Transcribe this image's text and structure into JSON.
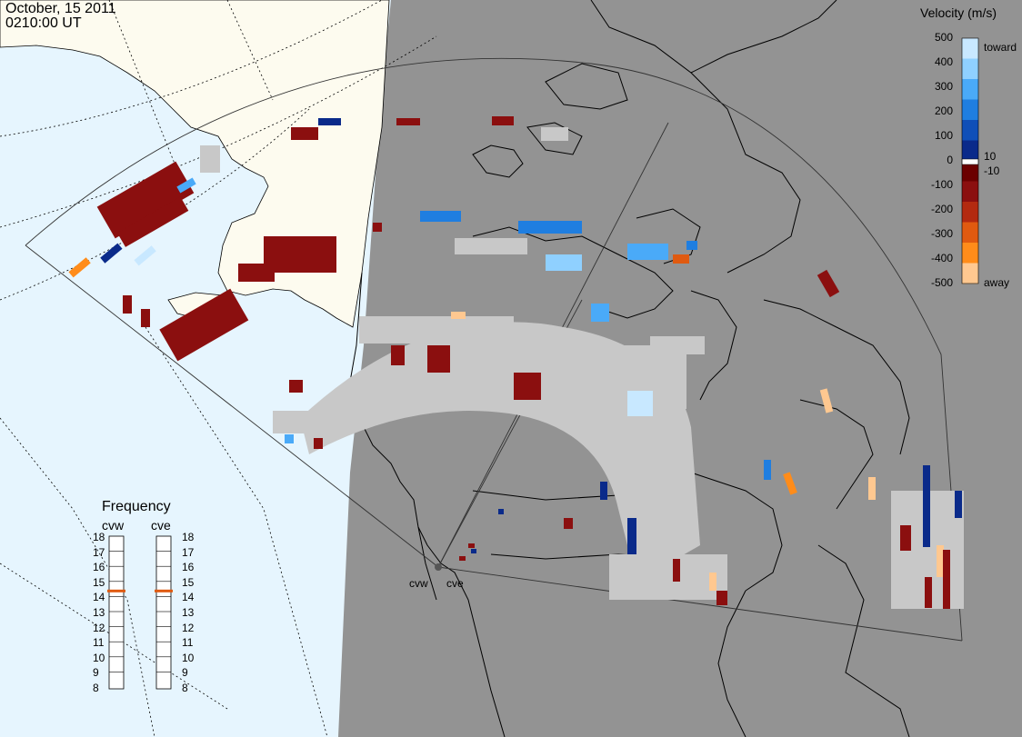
{
  "header": {
    "date": "October, 15 2011",
    "time": "0210:00 UT"
  },
  "colors": {
    "ocean": "#e6f5fe",
    "land_light": "#fdfbef",
    "shadow": "#939393",
    "gray_scatter": "#c8c8c8",
    "coast": "#000000"
  },
  "radars": {
    "west_label": "cvw",
    "east_label": "cve"
  },
  "velocity_legend": {
    "title": "Velocity (m/s)",
    "toward_label": "toward",
    "away_label": "away",
    "ticks": [
      "500",
      "400",
      "300",
      "200",
      "100",
      "0",
      "-100",
      "-200",
      "-300",
      "-400",
      "-500"
    ],
    "inner_labels": [
      "10",
      "-10"
    ],
    "colors": [
      "#c8e8ff",
      "#8fd0ff",
      "#4aaaf8",
      "#1f7ee0",
      "#0f4fb8",
      "#0a2a8a",
      "#6b0000",
      "#8b0f0f",
      "#b32a10",
      "#e05a10",
      "#ff8c1a",
      "#ffc890"
    ]
  },
  "frequency_panel": {
    "title": "Frequency",
    "radar_w": "cvw",
    "radar_e": "cve",
    "scale": [
      "18",
      "17",
      "16",
      "15",
      "14",
      "13",
      "12",
      "11",
      "10",
      "9",
      "8"
    ],
    "cvw_mhz": 15,
    "cve_mhz": 15,
    "indicator_color": "#e05a10"
  }
}
